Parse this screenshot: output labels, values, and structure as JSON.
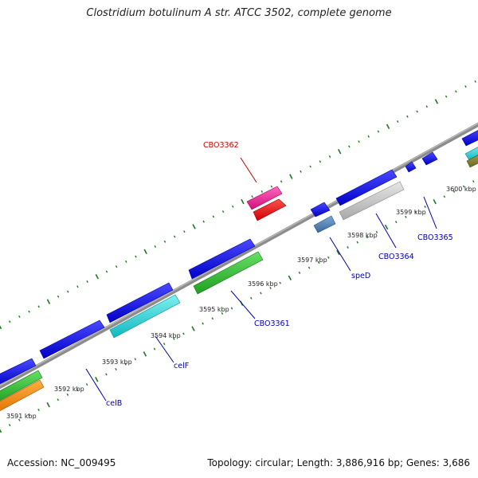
{
  "title": "Clostridium botulinum A str. ATCC 3502, complete genome",
  "footer": {
    "accession": "Accession: NC_009495",
    "summary": "Topology: circular; Length: 3,886,916 bp; Genes: 3,686"
  },
  "colors": {
    "backbone": "#8c8c8c",
    "tick": "#1a7a1a",
    "red_label": "#cc0000",
    "blue_label": "#0000b0"
  },
  "kbp_labels": [
    "3591 kbp",
    "3592 kbp",
    "3593 kbp",
    "3594 kbp",
    "3595 kbp",
    "3596 kbp",
    "3597 kbp",
    "3598 kbp",
    "3599 kbp",
    "3600 kbp"
  ],
  "gene_labels": [
    "celB",
    "celF",
    "CBO3361",
    "CBO3362",
    "speD",
    "CBO3364",
    "CBO3365"
  ]
}
